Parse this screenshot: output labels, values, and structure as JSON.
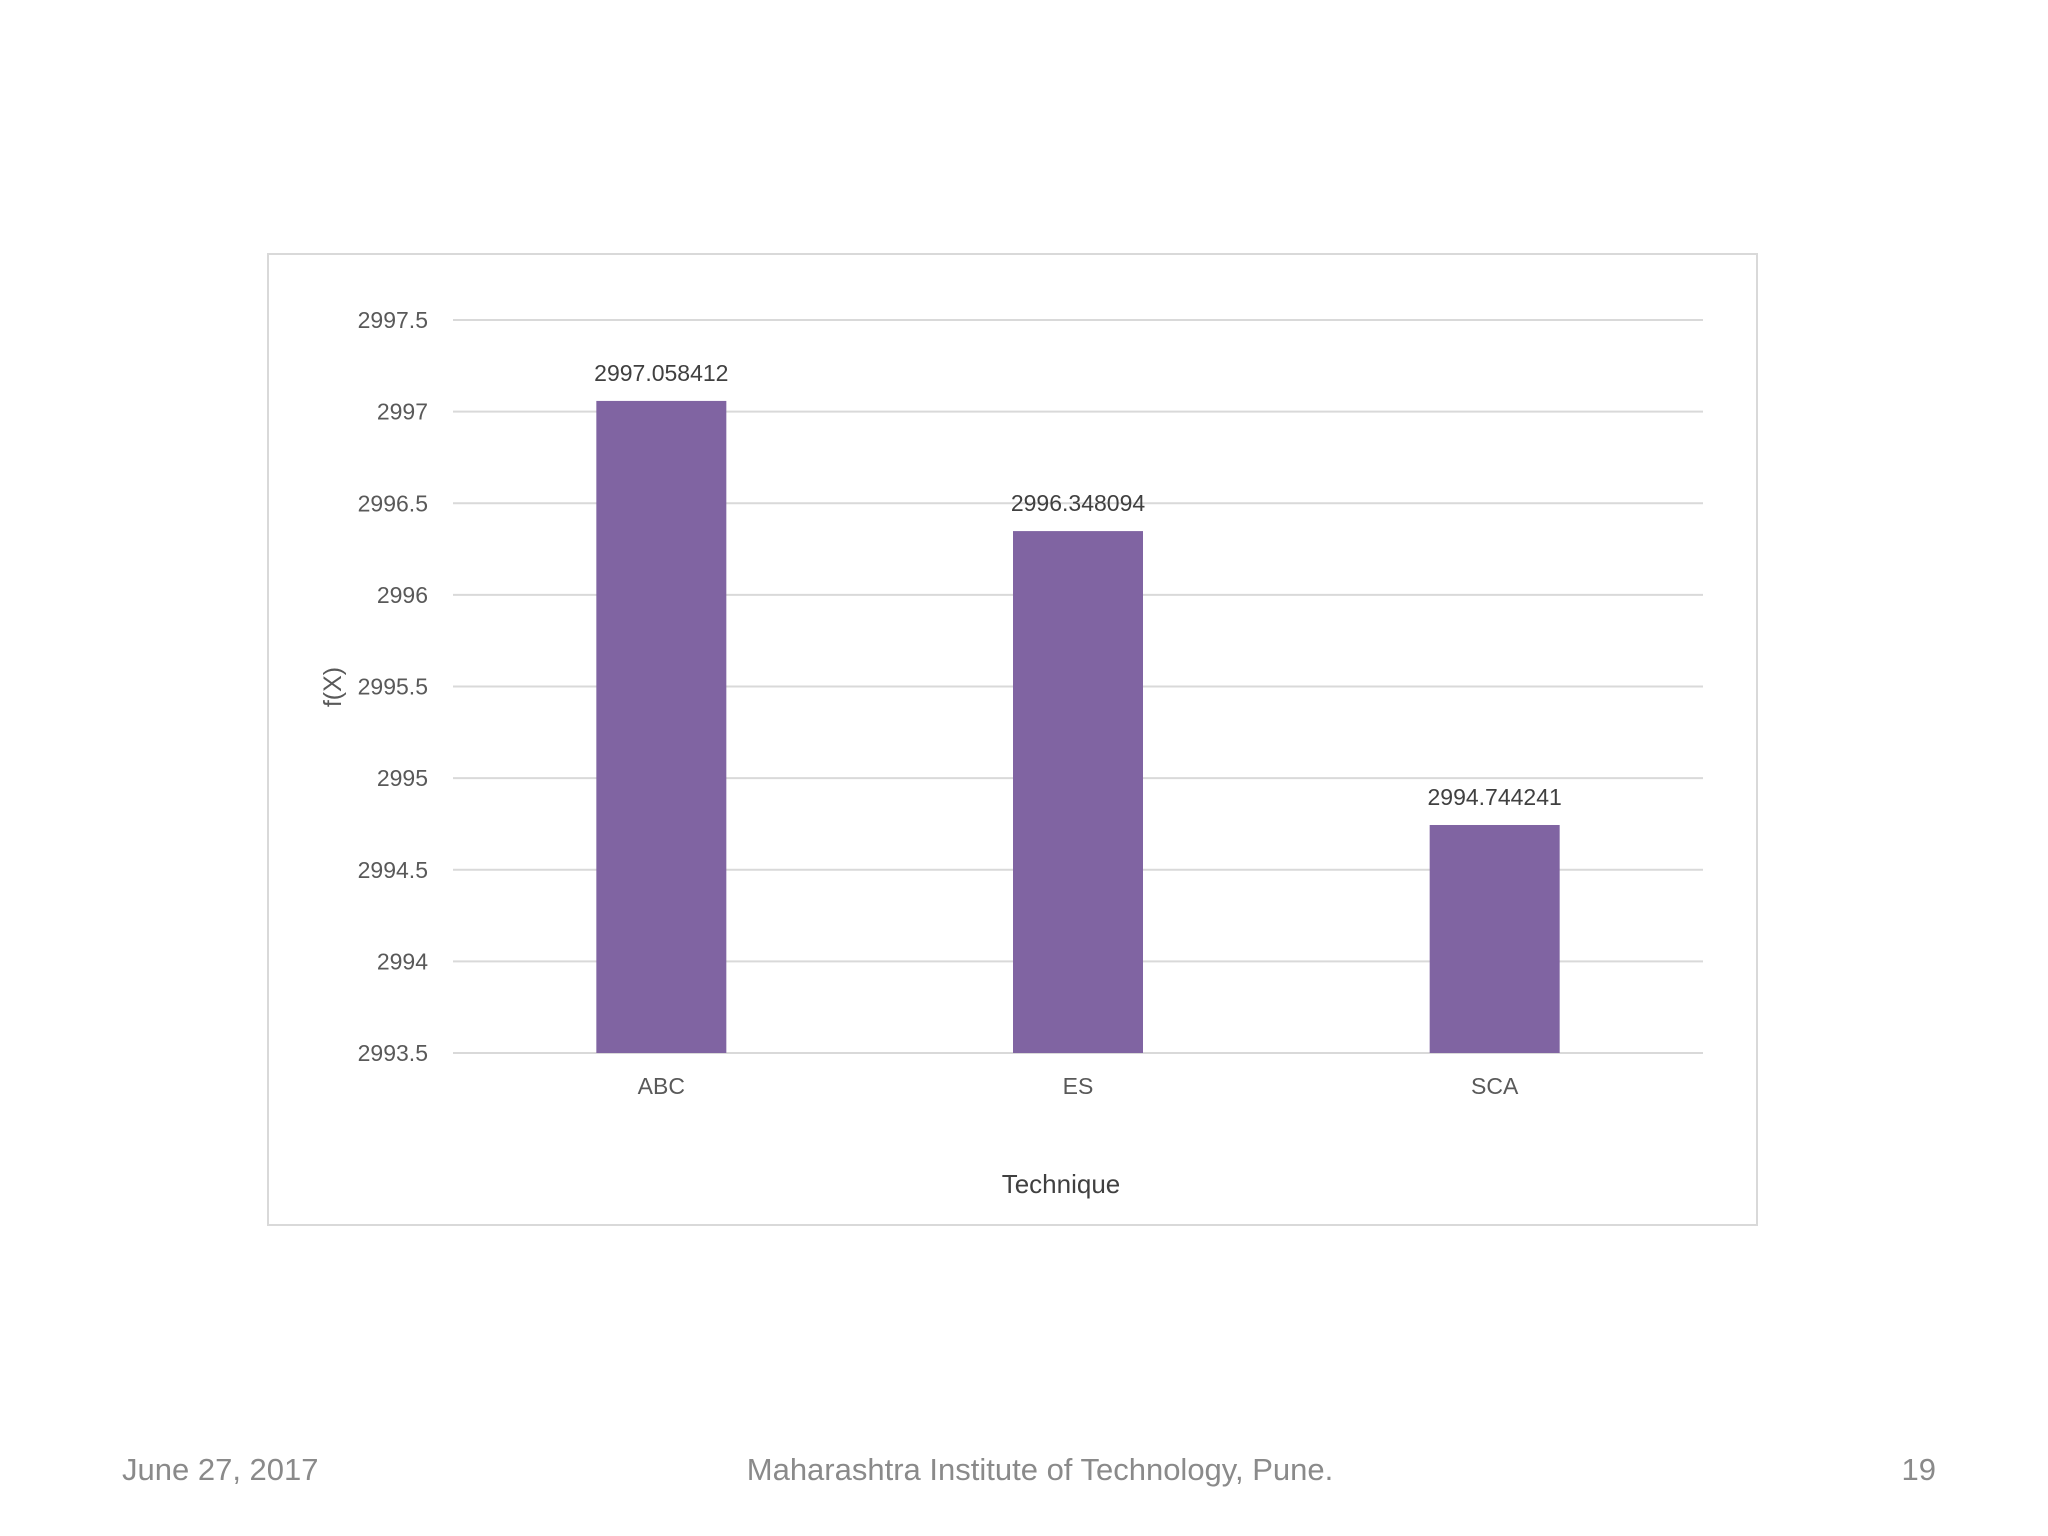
{
  "slide": {
    "footer_date": "June 27, 2017",
    "footer_org": "Maharashtra Institute of Technology, Pune.",
    "page_number": "19"
  },
  "chart_data": {
    "type": "bar",
    "categories": [
      "ABC",
      "ES",
      "SCA"
    ],
    "values": [
      2997.058412,
      2996.348094,
      2994.744241
    ],
    "value_labels": [
      "2997.058412",
      "2996.348094",
      "2994.744241"
    ],
    "title": "",
    "xlabel": "Technique",
    "ylabel": "f(X)",
    "ylim": [
      2993.5,
      2997.5
    ],
    "yticks": [
      2993.5,
      2994,
      2994.5,
      2995,
      2995.5,
      2996,
      2996.5,
      2997,
      2997.5
    ],
    "ytick_labels": [
      "2993.5",
      "2994",
      "2994.5",
      "2995",
      "2995.5",
      "2996",
      "2996.5",
      "2997",
      "2997.5"
    ],
    "grid": true,
    "legend": "none",
    "colors": {
      "bar": "#8064a2",
      "grid": "#d9d9d9",
      "text": "#595959",
      "label": "#404040"
    }
  }
}
